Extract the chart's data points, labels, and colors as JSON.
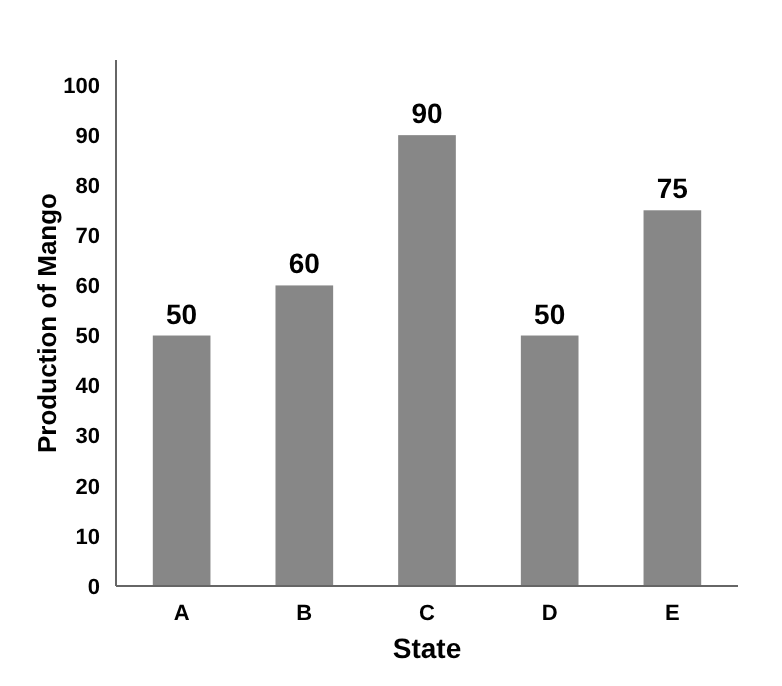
{
  "chart_data": {
    "type": "bar",
    "xlabel": "State",
    "ylabel": "Production of Mango",
    "categories": [
      "A",
      "B",
      "C",
      "D",
      "E"
    ],
    "values": [
      50,
      60,
      90,
      50,
      75
    ],
    "color": "#878787",
    "ylim": [
      0,
      105
    ],
    "yticks": [
      0,
      10,
      20,
      30,
      40,
      50,
      60,
      70,
      80,
      90,
      100
    ],
    "grid": false,
    "data_labels": true
  }
}
